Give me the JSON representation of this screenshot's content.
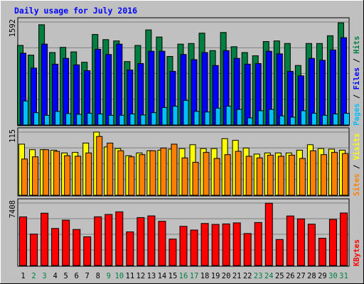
{
  "chart_data": {
    "type": "bar",
    "title": "Daily usage for July 2016",
    "categories": [
      "1",
      "2",
      "3",
      "4",
      "5",
      "6",
      "7",
      "8",
      "9",
      "10",
      "11",
      "12",
      "13",
      "14",
      "15",
      "16",
      "17",
      "18",
      "19",
      "20",
      "21",
      "22",
      "23",
      "24",
      "25",
      "26",
      "27",
      "28",
      "29",
      "30",
      "31"
    ],
    "weekend_days": [
      "2",
      "3",
      "9",
      "10",
      "16",
      "17",
      "23",
      "24",
      "30",
      "31"
    ],
    "colors": {
      "background": "#C0C0C0",
      "frame": "#808080",
      "title": "#0000FF",
      "hits": "#008040",
      "files": "#0000FF",
      "pages": "#00C0FF",
      "visits": "#FFFF00",
      "sites": "#FF8000",
      "kbytes": "#FF0000",
      "weekday_label": "#000000",
      "weekend_label": "#008040"
    },
    "panels": [
      {
        "id": "requests",
        "axis_max_label": "1592",
        "ylim": [
          0,
          1592
        ],
        "legend": [
          {
            "text": "Pages",
            "color": "#00C0FF"
          },
          {
            "text": "Files",
            "color": "#0000FF"
          },
          {
            "text": "Hits",
            "color": "#008040"
          }
        ],
        "legend_sep": "/",
        "series": [
          {
            "name": "Hits",
            "color": "#008040",
            "values": [
              1230,
              1080,
              1550,
              1120,
              1200,
              1130,
              970,
              1400,
              1320,
              1300,
              980,
              1230,
              1470,
              1360,
              1060,
              1250,
              1260,
              1420,
              1150,
              1430,
              1210,
              1120,
              1070,
              1290,
              1300,
              1260,
              920,
              1260,
              1260,
              1380,
              1580
            ]
          },
          {
            "name": "Files",
            "color": "#0000FF",
            "values": [
              1110,
              880,
              1250,
              940,
              1030,
              930,
              840,
              1170,
              1090,
              1250,
              850,
              950,
              1140,
              1140,
              830,
              1090,
              1010,
              1120,
              920,
              1150,
              1030,
              940,
              950,
              1140,
              1100,
              830,
              760,
              1030,
              1000,
              1160,
              1350
            ]
          },
          {
            "name": "Pages",
            "color": "#00C0FF",
            "values": [
              370,
              190,
              150,
              210,
              175,
              165,
              180,
              170,
              150,
              150,
              170,
              155,
              190,
              270,
              290,
              380,
              210,
              200,
              260,
              290,
              240,
              110,
              220,
              240,
              140,
              120,
              220,
              180,
              150,
              170,
              180
            ]
          }
        ]
      },
      {
        "id": "visitors",
        "axis_max_label": "115",
        "ylim": [
          0,
          115
        ],
        "legend": [
          {
            "text": "Sites",
            "color": "#FF8000"
          },
          {
            "text": "Visits",
            "color": "#FFFF00"
          }
        ],
        "legend_sep": "/",
        "series": [
          {
            "name": "Visits",
            "color": "#FFFF00",
            "values": [
              93,
              83,
              83,
              82,
              77,
              78,
              95,
              115,
              88,
              85,
              72,
              77,
              81,
              82,
              84,
              85,
              92,
              85,
              85,
              103,
              100,
              86,
              75,
              77,
              77,
              77,
              82,
              92,
              85,
              84,
              82
            ]
          },
          {
            "name": "Sites",
            "color": "#FF8000",
            "values": [
              66,
              70,
              83,
              80,
              72,
              71,
              77,
              107,
              95,
              81,
              70,
              74,
              81,
              86,
              93,
              68,
              60,
              78,
              67,
              74,
              80,
              71,
              68,
              73,
              71,
              73,
              67,
              81,
              74,
              78,
              76
            ]
          }
        ]
      },
      {
        "id": "kbytes",
        "axis_max_label": "7408",
        "ylim": [
          0,
          7408
        ],
        "legend": [
          {
            "text": "KBytes",
            "color": "#FF0000"
          }
        ],
        "legend_sep": "/",
        "series": [
          {
            "name": "KBytes",
            "color": "#FF0000",
            "values": [
              5770,
              3730,
              6210,
              4400,
              5380,
              4280,
              3410,
              5780,
              6060,
              6370,
              3990,
              5690,
              5890,
              5250,
              3140,
              4650,
              4210,
              4990,
              4880,
              4940,
              5060,
              3800,
              5100,
              7390,
              3090,
              5880,
              5530,
              4910,
              3240,
              5470,
              6230
            ]
          }
        ]
      }
    ]
  }
}
